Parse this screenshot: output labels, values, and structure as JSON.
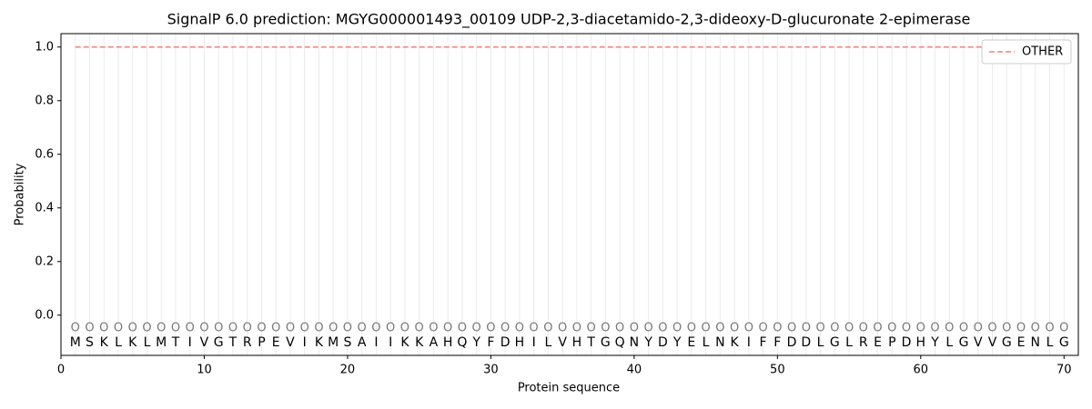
{
  "chart_data": {
    "type": "line",
    "title": "SignalP 6.0 prediction: MGYG000001493_00109 UDP-2,3-diacetamido-2,3-dideoxy-D-glucuronate 2-epimerase",
    "xlabel": "Protein sequence",
    "ylabel": "Probability",
    "x": [
      1,
      2,
      3,
      4,
      5,
      6,
      7,
      8,
      9,
      10,
      11,
      12,
      13,
      14,
      15,
      16,
      17,
      18,
      19,
      20,
      21,
      22,
      23,
      24,
      25,
      26,
      27,
      28,
      29,
      30,
      31,
      32,
      33,
      34,
      35,
      36,
      37,
      38,
      39,
      40,
      41,
      42,
      43,
      44,
      45,
      46,
      47,
      48,
      49,
      50,
      51,
      52,
      53,
      54,
      55,
      56,
      57,
      58,
      59,
      60,
      61,
      62,
      63,
      64,
      65,
      66,
      67,
      68,
      69,
      70
    ],
    "residues": [
      "M",
      "S",
      "K",
      "L",
      "K",
      "L",
      "M",
      "T",
      "I",
      "V",
      "G",
      "T",
      "R",
      "P",
      "E",
      "V",
      "I",
      "K",
      "M",
      "S",
      "A",
      "I",
      "I",
      "K",
      "K",
      "A",
      "H",
      "Q",
      "Y",
      "F",
      "D",
      "H",
      "I",
      "L",
      "V",
      "H",
      "T",
      "G",
      "Q",
      "N",
      "Y",
      "D",
      "Y",
      "E",
      "L",
      "N",
      "K",
      "I",
      "F",
      "F",
      "D",
      "D",
      "L",
      "G",
      "L",
      "R",
      "E",
      "P",
      "D",
      "H",
      "Y",
      "L",
      "G",
      "V",
      "V",
      "G",
      "E",
      "N",
      "L",
      "G"
    ],
    "predictions": [
      "O",
      "O",
      "O",
      "O",
      "O",
      "O",
      "O",
      "O",
      "O",
      "O",
      "O",
      "O",
      "O",
      "O",
      "O",
      "O",
      "O",
      "O",
      "O",
      "O",
      "O",
      "O",
      "O",
      "O",
      "O",
      "O",
      "O",
      "O",
      "O",
      "O",
      "O",
      "O",
      "O",
      "O",
      "O",
      "O",
      "O",
      "O",
      "O",
      "O",
      "O",
      "O",
      "O",
      "O",
      "O",
      "O",
      "O",
      "O",
      "O",
      "O",
      "O",
      "O",
      "O",
      "O",
      "O",
      "O",
      "O",
      "O",
      "O",
      "O",
      "O",
      "O",
      "O",
      "O",
      "O",
      "O",
      "O",
      "O",
      "O",
      "O"
    ],
    "series": [
      {
        "name": "OTHER",
        "color": "#f08080",
        "dashed": true,
        "values": [
          1,
          1,
          1,
          1,
          1,
          1,
          1,
          1,
          1,
          1,
          1,
          1,
          1,
          1,
          1,
          1,
          1,
          1,
          1,
          1,
          1,
          1,
          1,
          1,
          1,
          1,
          1,
          1,
          1,
          1,
          1,
          1,
          1,
          1,
          1,
          1,
          1,
          1,
          1,
          1,
          1,
          1,
          1,
          1,
          1,
          1,
          1,
          1,
          1,
          1,
          1,
          1,
          1,
          1,
          1,
          1,
          1,
          1,
          1,
          1,
          1,
          1,
          1,
          1,
          1,
          1,
          1,
          1,
          1,
          1
        ]
      }
    ],
    "xlim": [
      0,
      71
    ],
    "ylim": [
      -0.15,
      1.05
    ],
    "xticks": [
      0,
      10,
      20,
      30,
      40,
      50,
      60,
      70
    ],
    "yticks": [
      {
        "value": 0,
        "label": "0.0"
      },
      {
        "value": 0.2,
        "label": "0.2"
      },
      {
        "value": 0.4,
        "label": "0.4"
      },
      {
        "value": 0.6,
        "label": "0.6"
      },
      {
        "value": 0.8,
        "label": "0.8"
      },
      {
        "value": 1,
        "label": "1.0"
      }
    ],
    "grid": true,
    "legend": "upper right"
  }
}
